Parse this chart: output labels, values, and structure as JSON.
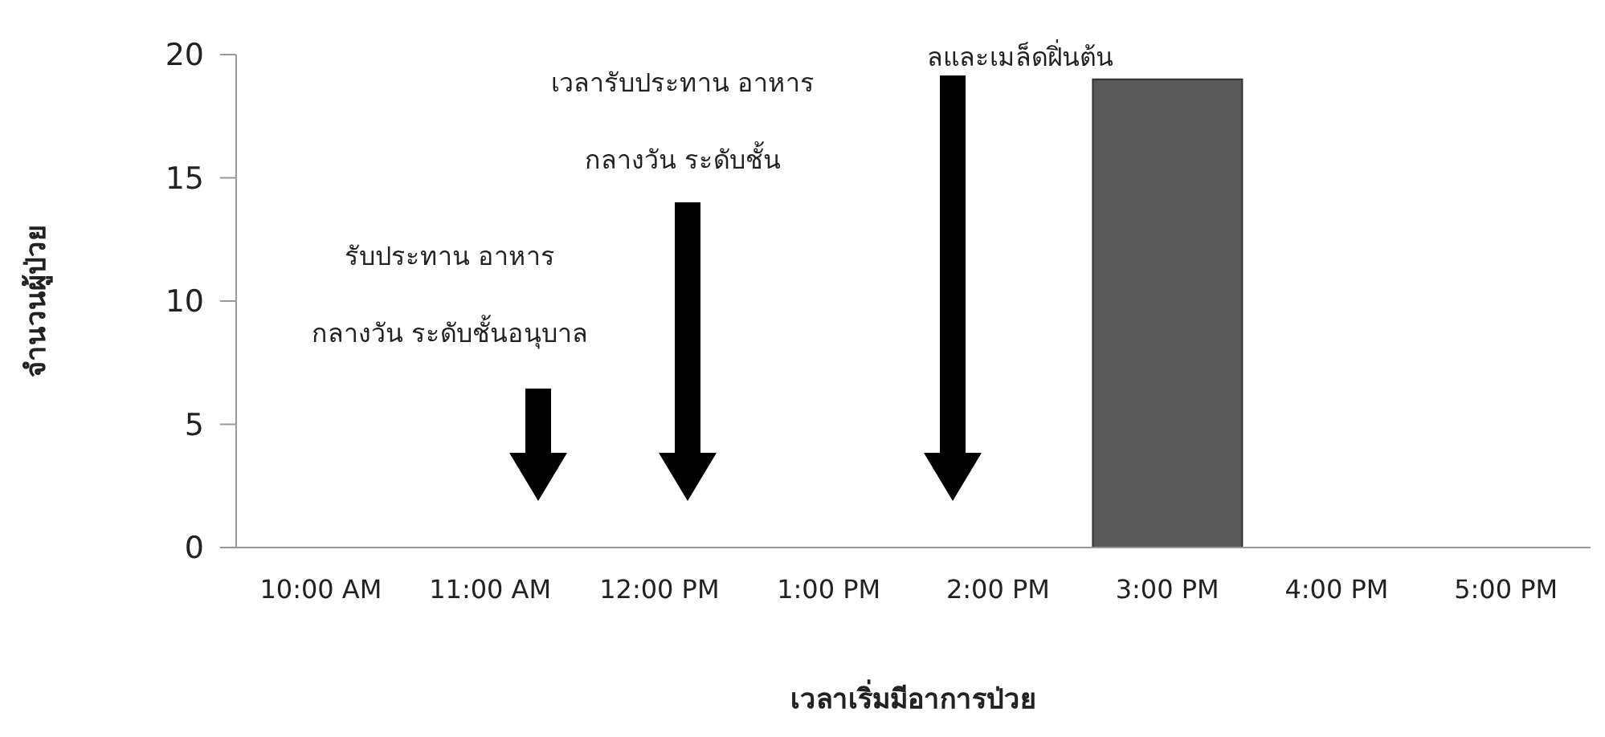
{
  "chart_data": {
    "type": "bar",
    "xlabel": "เวลาเริ่มมีอาการป่วย",
    "ylabel": "จำนวนผู้ป่วย",
    "categories": [
      "10:00 AM",
      "11:00 AM",
      "12:00 PM",
      "1:00 PM",
      "2:00 PM",
      "3:00 PM",
      "4:00 PM",
      "5:00 PM"
    ],
    "values": [
      0,
      0,
      0,
      0,
      0,
      19,
      0,
      0
    ],
    "color": "#595959",
    "ylim": [
      0,
      20
    ],
    "yticks": [
      0,
      5,
      10,
      15,
      20
    ],
    "grid": false,
    "legend": false,
    "annotations": [
      "รับประทาน อาหาร\nกลางวัน ระดับชั้นอนุบาล",
      "เวลารับประทาน อาหาร\nกลางวัน ระดับชั้น",
      "ลและเมล็ดฝิ่นต้น"
    ]
  }
}
